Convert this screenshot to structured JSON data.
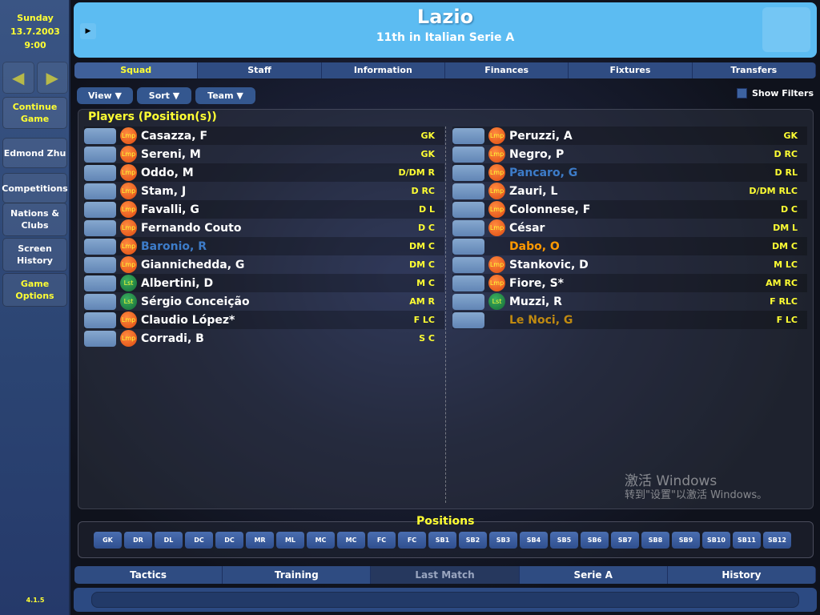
{
  "sidebar": {
    "day": "Sunday",
    "date": "13.7.2003",
    "time": "9:00",
    "prev": "◀",
    "next": "▶",
    "buttons": [
      {
        "label": "Continue Game",
        "highlight": true
      },
      {
        "label": "Edmond Zhu"
      },
      {
        "label": "Competitions"
      },
      {
        "label": "Nations & Clubs"
      },
      {
        "label": "Screen History"
      },
      {
        "label": "Game Options",
        "highlight": true
      }
    ],
    "version": "4.1.5"
  },
  "header": {
    "title": "Lazio",
    "subtitle": "11th in Italian Serie A"
  },
  "tabs": [
    "Squad",
    "Staff",
    "Information",
    "Finances",
    "Fixtures",
    "Transfers"
  ],
  "toolbar": {
    "view": "View ▼",
    "sort": "Sort ▼",
    "team": "Team ▼",
    "show_filters": "Show Filters"
  },
  "players_title": "Players (Position(s))",
  "left_players": [
    {
      "name": "Casazza, F",
      "pos": "GK",
      "badge": "Lmp",
      "color": "#ffffff"
    },
    {
      "name": "Sereni, M",
      "pos": "GK",
      "badge": "Lmp",
      "color": "#ffffff"
    },
    {
      "name": "Oddo, M",
      "pos": "D/DM R",
      "badge": "Lmp",
      "color": "#ffffff"
    },
    {
      "name": "Stam, J",
      "pos": "D RC",
      "badge": "Lmp",
      "color": "#ffffff"
    },
    {
      "name": "Favalli, G",
      "pos": "D L",
      "badge": "Lmp",
      "color": "#ffffff"
    },
    {
      "name": "Fernando Couto",
      "pos": "D C",
      "badge": "Lmp",
      "color": "#ffffff"
    },
    {
      "name": "Baronio, R",
      "pos": "DM C",
      "badge": "Lmp",
      "color": "#3d7cc9"
    },
    {
      "name": "Giannichedda, G",
      "pos": "DM C",
      "badge": "Lmp",
      "color": "#ffffff"
    },
    {
      "name": "Albertini, D",
      "pos": "M C",
      "badge": "Lst",
      "color": "#ffffff"
    },
    {
      "name": "Sérgio Conceição",
      "pos": "AM R",
      "badge": "Lst",
      "color": "#ffffff"
    },
    {
      "name": "Claudio López*",
      "pos": "F LC",
      "badge": "Lmp",
      "color": "#ffffff"
    },
    {
      "name": "Corradi, B",
      "pos": "S C",
      "badge": "Lmp",
      "color": "#ffffff"
    }
  ],
  "right_players": [
    {
      "name": "Peruzzi, A",
      "pos": "GK",
      "badge": "Lmp",
      "color": "#ffffff"
    },
    {
      "name": "Negro, P",
      "pos": "D RC",
      "badge": "Lmp",
      "color": "#ffffff"
    },
    {
      "name": "Pancaro, G",
      "pos": "D RL",
      "badge": "Lmp",
      "color": "#3d7cc9"
    },
    {
      "name": "Zauri, L",
      "pos": "D/DM RLC",
      "badge": "Lmp",
      "color": "#ffffff"
    },
    {
      "name": "Colonnese, F",
      "pos": "D C",
      "badge": "Lmp",
      "color": "#ffffff"
    },
    {
      "name": "César",
      "pos": "DM L",
      "badge": "Lmp",
      "color": "#ffffff"
    },
    {
      "name": "Dabo, O",
      "pos": "DM C",
      "badge": "",
      "color": "#ff9900"
    },
    {
      "name": "Stankovic, D",
      "pos": "M LC",
      "badge": "Lmp",
      "color": "#ffffff"
    },
    {
      "name": "Fiore, S*",
      "pos": "AM RC",
      "badge": "Lmp",
      "color": "#ffffff"
    },
    {
      "name": "Muzzi, R",
      "pos": "F RLC",
      "badge": "Lst",
      "color": "#ffffff"
    },
    {
      "name": "Le Noci, G",
      "pos": "F LC",
      "badge": "",
      "color": "#c08a10"
    }
  ],
  "positions_title": "Positions",
  "positions": [
    "GK",
    "DR",
    "DL",
    "DC",
    "DC",
    "MR",
    "ML",
    "MC",
    "MC",
    "FC",
    "FC",
    "SB1",
    "SB2",
    "SB3",
    "SB4",
    "SB5",
    "SB6",
    "SB7",
    "SB8",
    "SB9",
    "SB10",
    "SB11",
    "SB12"
  ],
  "watermark": {
    "line1": "激活 Windows",
    "line2": "转到\"设置\"以激活 Windows。"
  },
  "bottom_tabs": [
    "Tactics",
    "Training",
    "Last Match",
    "Serie A",
    "History"
  ],
  "colors": {
    "accent": "#ffff33",
    "header": "#5cbcf2",
    "tab": "#2f4c82"
  }
}
